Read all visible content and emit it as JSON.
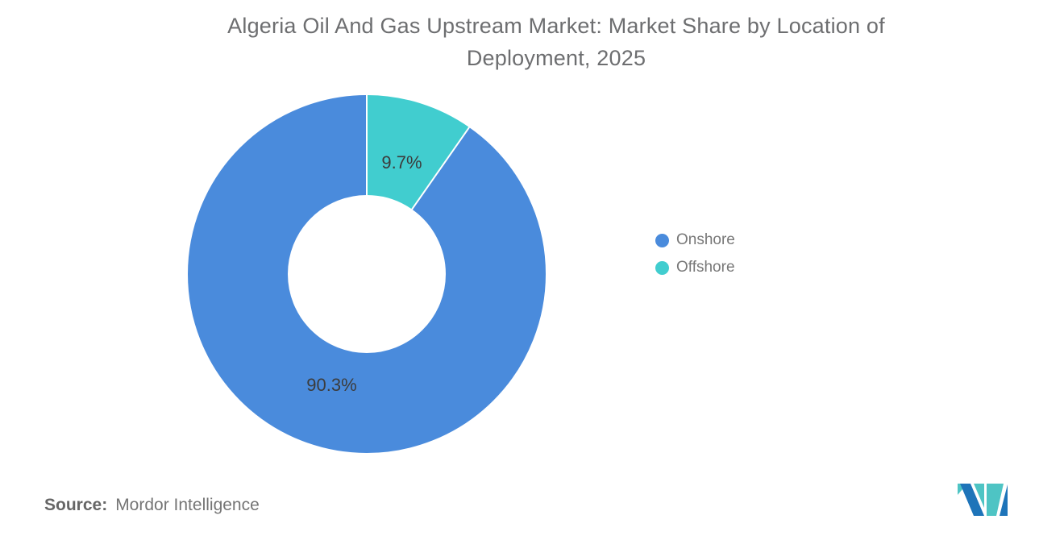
{
  "page": {
    "background": "#ffffff"
  },
  "header": {
    "title_lines": [
      "Algeria Oil And Gas Upstream Market: Market Share by Location of",
      "Deployment, 2025"
    ],
    "title_color": "#6d6e70"
  },
  "chart_data": {
    "type": "pie",
    "subtype": "donut",
    "title": "Algeria Oil And Gas Upstream Market: Market Share by Location of Deployment, 2025",
    "unit": "%",
    "series": [
      {
        "name": "Onshore",
        "value": 90.3,
        "label": "90.3%",
        "color": "#4A8BDC"
      },
      {
        "name": "Offshore",
        "value": 9.7,
        "label": "9.7%",
        "color": "#41CDCF"
      }
    ],
    "layout": {
      "start_angle_deg": 0,
      "direction": "clockwise from 12 o'clock, Offshore slice first",
      "inner_radius_ratio": 0.44,
      "legend_position": "right",
      "slice_label_color": "#3c3c3c",
      "slice_border_color": "#ffffff"
    }
  },
  "footer": {
    "source_label": "Source:",
    "source_value": "Mordor Intelligence"
  },
  "logo": {
    "name": "Mordor Intelligence logo",
    "blue": "#1E74B9",
    "teal": "#4EC4C4"
  }
}
